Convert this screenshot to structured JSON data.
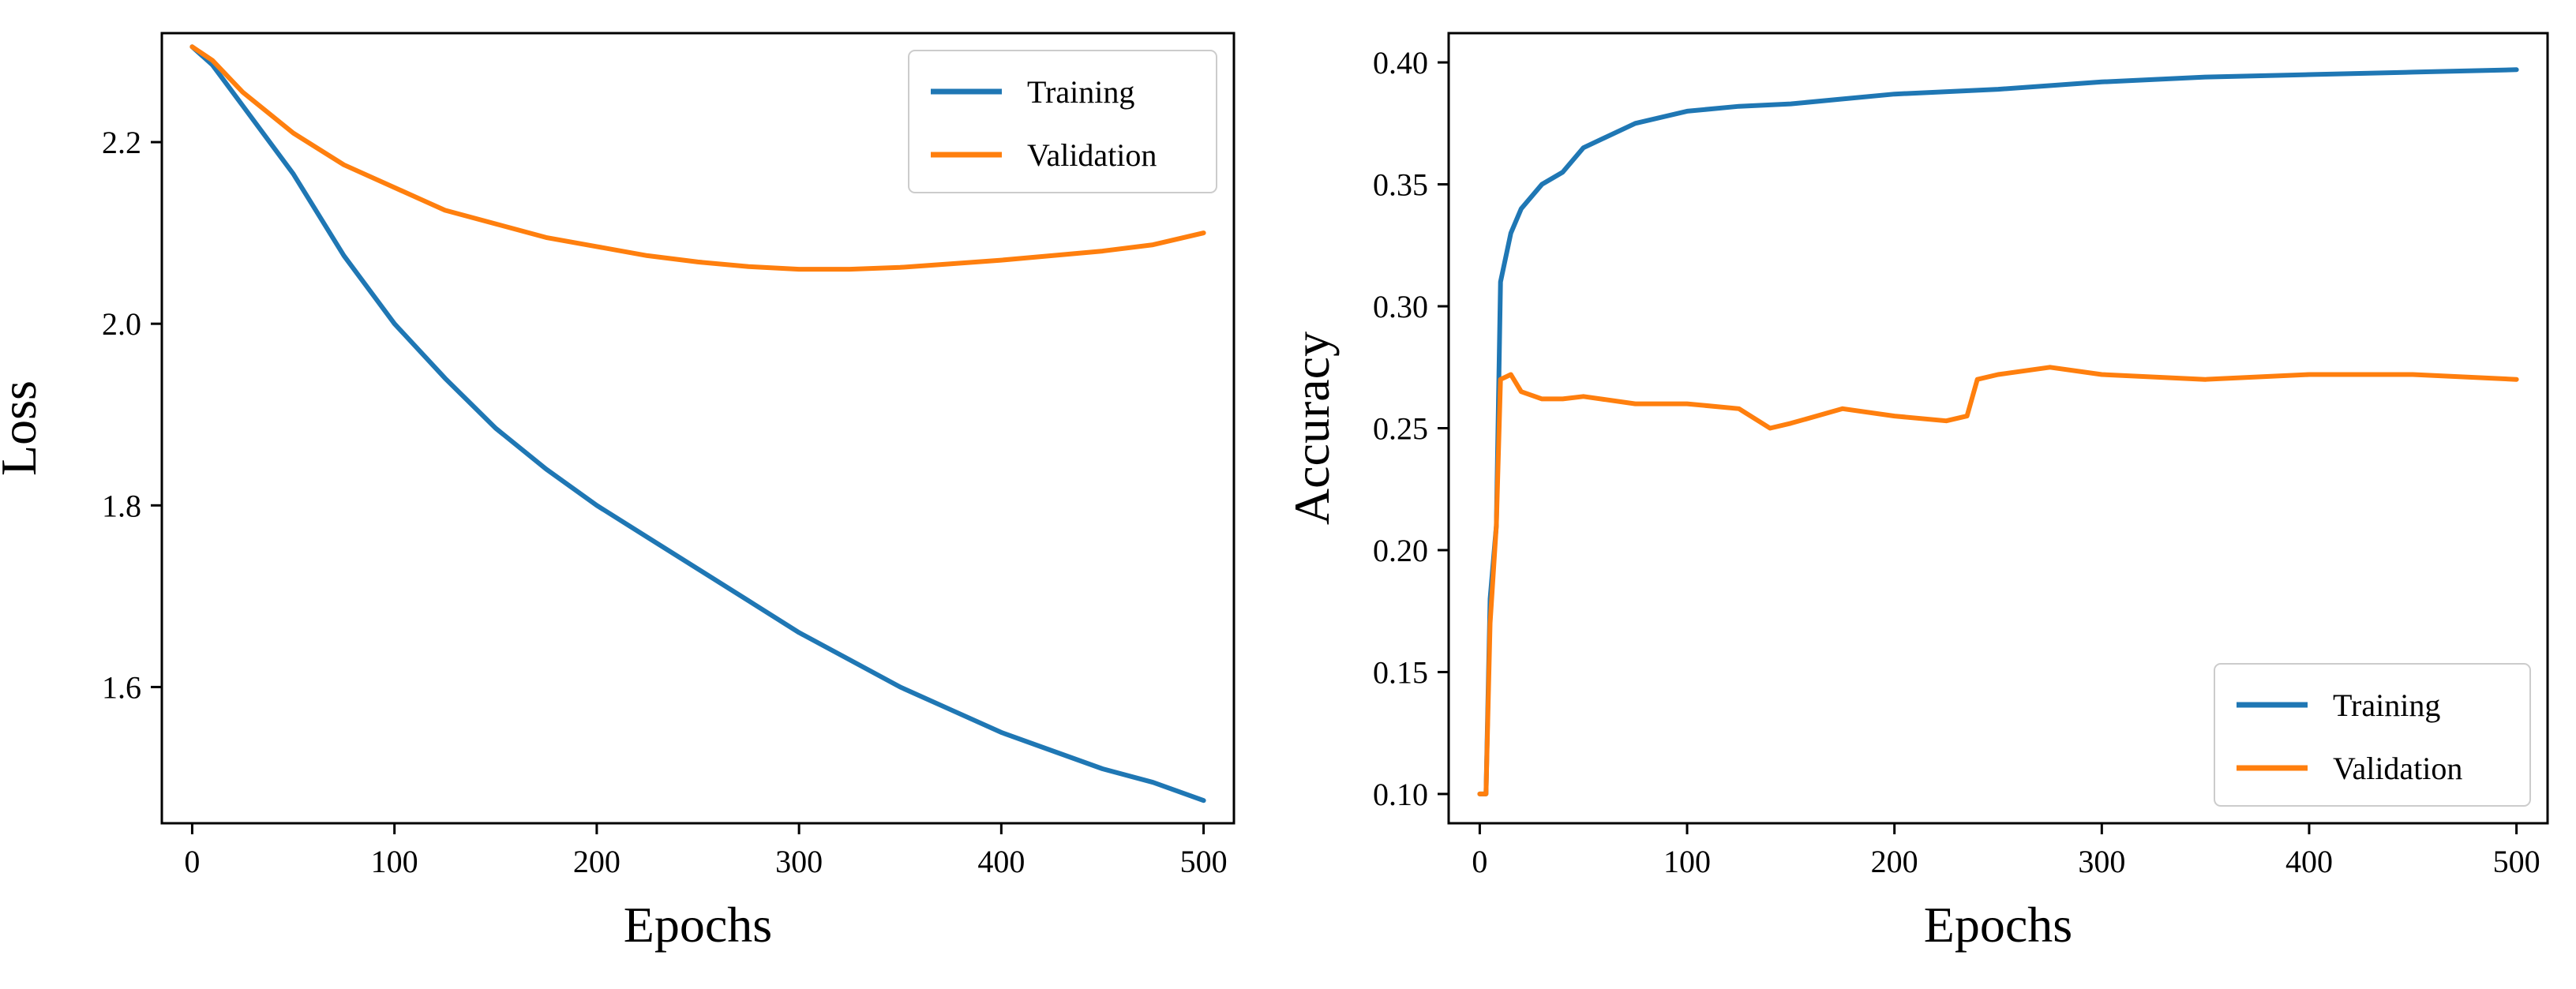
{
  "colors": {
    "training": "#1f77b4",
    "validation": "#ff7f0e",
    "axis": "#000000"
  },
  "chart_data": [
    {
      "type": "line",
      "title": "",
      "xlabel": "Epochs",
      "ylabel": "Loss",
      "xlim": [
        -15,
        515
      ],
      "ylim": [
        1.45,
        2.32
      ],
      "xticks": [
        0,
        100,
        200,
        300,
        400,
        500
      ],
      "yticks": [
        1.6,
        1.8,
        2.0,
        2.2
      ],
      "xtick_labels": [
        "0",
        "100",
        "200",
        "300",
        "400",
        "500"
      ],
      "ytick_labels": [
        "1.6",
        "1.8",
        "2.0",
        "2.2"
      ],
      "legend": "top-right",
      "grid": false,
      "series": [
        {
          "name": "Training",
          "color": "#1f77b4",
          "x": [
            0,
            10,
            25,
            50,
            75,
            100,
            125,
            150,
            175,
            200,
            225,
            250,
            275,
            300,
            325,
            350,
            375,
            400,
            425,
            450,
            475,
            500
          ],
          "values": [
            2.305,
            2.285,
            2.24,
            2.165,
            2.075,
            2.0,
            1.94,
            1.885,
            1.84,
            1.8,
            1.765,
            1.73,
            1.695,
            1.66,
            1.63,
            1.6,
            1.575,
            1.55,
            1.53,
            1.51,
            1.495,
            1.475
          ]
        },
        {
          "name": "Validation",
          "color": "#ff7f0e",
          "x": [
            0,
            10,
            25,
            50,
            75,
            100,
            125,
            150,
            175,
            200,
            225,
            250,
            275,
            300,
            325,
            350,
            375,
            400,
            425,
            450,
            475,
            500
          ],
          "values": [
            2.305,
            2.29,
            2.255,
            2.21,
            2.175,
            2.15,
            2.125,
            2.11,
            2.095,
            2.085,
            2.075,
            2.068,
            2.063,
            2.06,
            2.06,
            2.062,
            2.066,
            2.07,
            2.075,
            2.08,
            2.087,
            2.1
          ]
        }
      ]
    },
    {
      "type": "line",
      "title": "",
      "xlabel": "Epochs",
      "ylabel": "Accuracy",
      "xlim": [
        -15,
        515
      ],
      "ylim": [
        0.088,
        0.412
      ],
      "xticks": [
        0,
        100,
        200,
        300,
        400,
        500
      ],
      "yticks": [
        0.1,
        0.15,
        0.2,
        0.25,
        0.3,
        0.35,
        0.4
      ],
      "xtick_labels": [
        "0",
        "100",
        "200",
        "300",
        "400",
        "500"
      ],
      "ytick_labels": [
        "0.10",
        "0.15",
        "0.20",
        "0.25",
        "0.30",
        "0.35",
        "0.40"
      ],
      "legend": "bottom-right",
      "grid": false,
      "series": [
        {
          "name": "Training",
          "color": "#1f77b4",
          "x": [
            0,
            3,
            5,
            8,
            10,
            15,
            20,
            30,
            40,
            50,
            75,
            100,
            125,
            150,
            175,
            200,
            250,
            300,
            350,
            400,
            450,
            500
          ],
          "values": [
            0.1,
            0.1,
            0.18,
            0.21,
            0.31,
            0.33,
            0.34,
            0.35,
            0.355,
            0.365,
            0.375,
            0.38,
            0.382,
            0.383,
            0.385,
            0.387,
            0.389,
            0.392,
            0.394,
            0.395,
            0.396,
            0.397
          ]
        },
        {
          "name": "Validation",
          "color": "#ff7f0e",
          "x": [
            0,
            3,
            5,
            8,
            10,
            15,
            20,
            30,
            40,
            50,
            75,
            100,
            125,
            140,
            150,
            175,
            200,
            225,
            235,
            240,
            250,
            275,
            300,
            350,
            400,
            450,
            500
          ],
          "values": [
            0.1,
            0.1,
            0.17,
            0.21,
            0.27,
            0.272,
            0.265,
            0.262,
            0.262,
            0.263,
            0.26,
            0.26,
            0.258,
            0.25,
            0.252,
            0.258,
            0.255,
            0.253,
            0.255,
            0.27,
            0.272,
            0.275,
            0.272,
            0.27,
            0.272,
            0.272,
            0.27
          ]
        }
      ]
    }
  ]
}
